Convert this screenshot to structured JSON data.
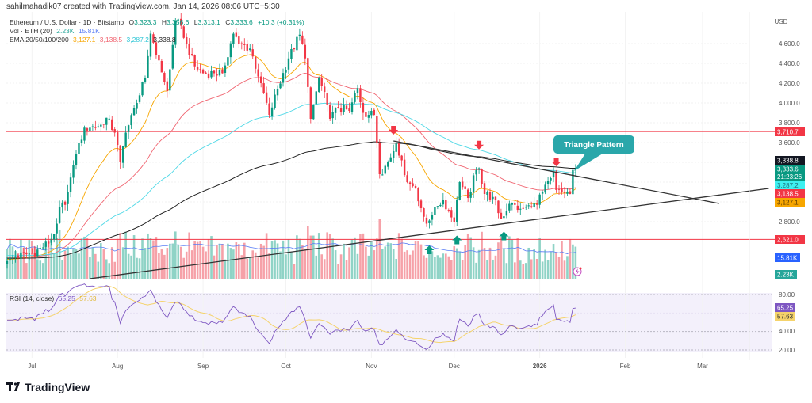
{
  "header": {
    "attribution": "sahilmahadik07 created with TradingView.com, Jan 14, 2026 08:06 UTC+5:30",
    "symbol": "Ethereum / U.S. Dollar · 1D · Bitstamp",
    "open_label": "O",
    "open": "3,323.3",
    "high_label": "H",
    "high": "3,356.6",
    "low_label": "L",
    "low": "3,313.1",
    "close_label": "C",
    "close": "3,333.6",
    "change": "+10.3 (+0.31%)",
    "vol_label": "Vol · ETH (20)",
    "vol_value": "2.23K",
    "vol_ma": "15.81K",
    "ema_label": "EMA 20/50/100/200",
    "ema20": "3,127.1",
    "ema50": "3,138.5",
    "ema100": "3,287.2",
    "ema200": "3,338.8"
  },
  "price_axis": {
    "currency": "USD",
    "ticks": [
      "4,600.0",
      "4,400.0",
      "4,200.0",
      "4,000.0",
      "3,800.0",
      "3,600.0",
      "2,800.0"
    ],
    "tags": {
      "resistance": "3,710.7",
      "ema200": "3,338.8",
      "last_price": "3,333.6",
      "countdown": "21:23:26",
      "ema100": "3,287.2",
      "ema50": "3,138.5",
      "ema20": "3,127.1",
      "support": "2,621.0",
      "vol_ma": "15.81K",
      "volume": "2.23K"
    }
  },
  "rsi": {
    "label": "RSI (14, close)",
    "value": "65.25",
    "ma_value": "57.63",
    "ticks": [
      "80.00",
      "40.00",
      "20.00"
    ]
  },
  "time_axis": {
    "labels": [
      {
        "text": "Jul",
        "date": "2025-07-01"
      },
      {
        "text": "Aug",
        "date": "2025-08-01"
      },
      {
        "text": "Sep",
        "date": "2025-09-01"
      },
      {
        "text": "Oct",
        "date": "2025-10-01"
      },
      {
        "text": "Nov",
        "date": "2025-11-01"
      },
      {
        "text": "Dec",
        "date": "2025-12-01"
      },
      {
        "text": "2026",
        "date": "2026-01-01"
      },
      {
        "text": "Feb",
        "date": "2026-02-01"
      },
      {
        "text": "Mar",
        "date": "2026-03-01"
      }
    ]
  },
  "annotation": {
    "callout": "Triangle Pattern"
  },
  "brand": {
    "name": "TradingView"
  },
  "colors": {
    "up": "#089981",
    "down": "#f23645",
    "ema20": "#f7a600",
    "ema50": "#f06470",
    "ema100": "#4dd8e6",
    "ema200": "#222222",
    "rsi": "#7e57c2",
    "rsi_ma": "#f5d36b",
    "volume_ma": "#5b7ef5",
    "callout": "#2aa7aa"
  },
  "chart_data": {
    "type": "candlestick",
    "symbol": "ETH/USD",
    "interval": "1D",
    "ylim": [
      2300,
      4800
    ],
    "y_scale": "linear",
    "grid": true,
    "closes": [
      [
        "2025-06-22",
        2400
      ],
      [
        "2025-06-25",
        2450
      ],
      [
        "2025-07-01",
        2480
      ],
      [
        "2025-07-05",
        2540
      ],
      [
        "2025-07-08",
        2620
      ],
      [
        "2025-07-10",
        2780
      ],
      [
        "2025-07-11",
        2950
      ],
      [
        "2025-07-13",
        2970
      ],
      [
        "2025-07-14",
        3100
      ],
      [
        "2025-07-16",
        3370
      ],
      [
        "2025-07-17",
        3480
      ],
      [
        "2025-07-20",
        3750
      ],
      [
        "2025-07-22",
        3750
      ],
      [
        "2025-07-26",
        3780
      ],
      [
        "2025-07-28",
        3850
      ],
      [
        "2025-07-31",
        3700
      ],
      [
        "2025-08-02",
        3400
      ],
      [
        "2025-08-04",
        3700
      ],
      [
        "2025-08-08",
        4000
      ],
      [
        "2025-08-11",
        4250
      ],
      [
        "2025-08-13",
        4700
      ],
      [
        "2025-08-16",
        4430
      ],
      [
        "2025-08-19",
        4120
      ],
      [
        "2025-08-20",
        4340
      ],
      [
        "2025-08-22",
        4830
      ],
      [
        "2025-08-24",
        4780
      ],
      [
        "2025-08-26",
        4600
      ],
      [
        "2025-08-29",
        4370
      ],
      [
        "2025-09-01",
        4300
      ],
      [
        "2025-09-05",
        4300
      ],
      [
        "2025-09-08",
        4300
      ],
      [
        "2025-09-12",
        4700
      ],
      [
        "2025-09-14",
        4600
      ],
      [
        "2025-09-18",
        4550
      ],
      [
        "2025-09-22",
        4200
      ],
      [
        "2025-09-25",
        3880
      ],
      [
        "2025-09-28",
        4140
      ],
      [
        "2025-10-02",
        4450
      ],
      [
        "2025-10-06",
        4690
      ],
      [
        "2025-10-08",
        4450
      ],
      [
        "2025-10-10",
        3840
      ],
      [
        "2025-10-13",
        4250
      ],
      [
        "2025-10-16",
        3980
      ],
      [
        "2025-10-17",
        3840
      ],
      [
        "2025-10-20",
        3950
      ],
      [
        "2025-10-24",
        3920
      ],
      [
        "2025-10-27",
        4150
      ],
      [
        "2025-10-29",
        3900
      ],
      [
        "2025-11-02",
        3880
      ],
      [
        "2025-11-03",
        3600
      ],
      [
        "2025-11-04",
        3280
      ],
      [
        "2025-11-07",
        3400
      ],
      [
        "2025-11-10",
        3590
      ],
      [
        "2025-11-12",
        3420
      ],
      [
        "2025-11-14",
        3200
      ],
      [
        "2025-11-17",
        3140
      ],
      [
        "2025-11-20",
        2850
      ],
      [
        "2025-11-21",
        2780
      ],
      [
        "2025-11-24",
        2950
      ],
      [
        "2025-11-27",
        3020
      ],
      [
        "2025-12-01",
        2800
      ],
      [
        "2025-12-03",
        3200
      ],
      [
        "2025-12-06",
        3040
      ],
      [
        "2025-12-09",
        3320
      ],
      [
        "2025-12-10",
        3340
      ],
      [
        "2025-12-12",
        3080
      ],
      [
        "2025-12-15",
        3050
      ],
      [
        "2025-12-18",
        2830
      ],
      [
        "2025-12-21",
        2980
      ],
      [
        "2025-12-25",
        2930
      ],
      [
        "2025-12-29",
        2950
      ],
      [
        "2025-12-31",
        2970
      ],
      [
        "2026-01-02",
        3100
      ],
      [
        "2026-01-05",
        3240
      ],
      [
        "2026-01-06",
        3300
      ],
      [
        "2026-01-07",
        3120
      ],
      [
        "2026-01-10",
        3090
      ],
      [
        "2026-01-12",
        3080
      ],
      [
        "2026-01-13",
        3323.3
      ],
      [
        "2026-01-14",
        3333.6
      ]
    ],
    "horizontal_levels": [
      {
        "name": "resistance",
        "price": 3710.7,
        "color": "#f23645"
      },
      {
        "name": "support",
        "price": 2621.0,
        "color": "#f23645"
      }
    ],
    "trendlines": [
      {
        "name": "descending-trendline",
        "from": [
          "2025-11-09",
          3616
        ],
        "to": [
          "2026-03-07",
          2984
        ]
      },
      {
        "name": "ascending-trendline",
        "from": [
          "2025-07-22",
          2224
        ],
        "to": [
          "2026-03-25",
          3136
        ]
      }
    ],
    "markers": [
      {
        "type": "down",
        "date": "2025-11-09",
        "price": 3720
      },
      {
        "type": "down",
        "date": "2025-12-10",
        "price": 3570
      },
      {
        "type": "down",
        "date": "2026-01-07",
        "price": 3400
      },
      {
        "type": "up",
        "date": "2025-11-22",
        "price": 2520
      },
      {
        "type": "up",
        "date": "2025-12-02",
        "price": 2620
      },
      {
        "type": "up",
        "date": "2025-12-19",
        "price": 2660
      }
    ]
  }
}
